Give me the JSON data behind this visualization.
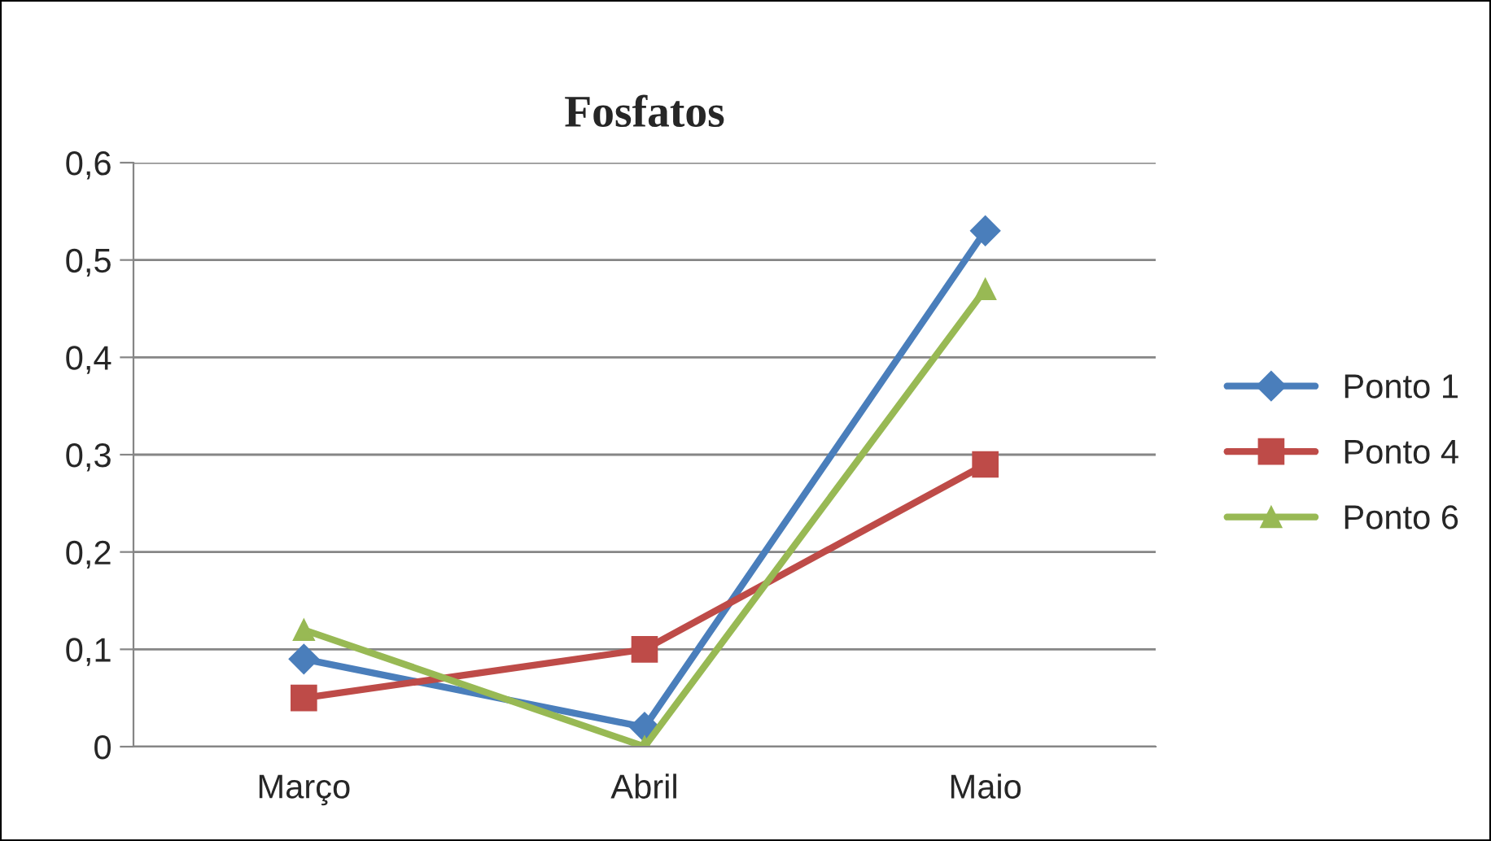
{
  "chart_data": {
    "type": "line",
    "title": "Fosfatos",
    "categories": [
      "Março",
      "Abril",
      "Maio"
    ],
    "series": [
      {
        "name": "Ponto 1",
        "color": "#4a7ebb",
        "marker": "diamond",
        "values": [
          0.09,
          0.02,
          0.53
        ]
      },
      {
        "name": "Ponto 4",
        "color": "#be4b48",
        "marker": "square",
        "values": [
          0.05,
          0.1,
          0.29
        ]
      },
      {
        "name": "Ponto 6",
        "color": "#98b954",
        "marker": "triangle",
        "values": [
          0.12,
          0.0,
          0.47
        ]
      }
    ],
    "ylim": [
      0,
      0.6
    ],
    "yticks": [
      0,
      {
        "value": 0.1,
        "label": "0,1"
      },
      {
        "value": 0.2,
        "label": "0,2"
      },
      {
        "value": 0.3,
        "label": "0,3"
      },
      {
        "value": 0.4,
        "label": "0,4"
      },
      {
        "value": 0.5,
        "label": "0,5"
      },
      {
        "value": 0.6,
        "label": "0,6"
      }
    ],
    "grid": "y",
    "legend": "right",
    "line_style": "solid"
  }
}
